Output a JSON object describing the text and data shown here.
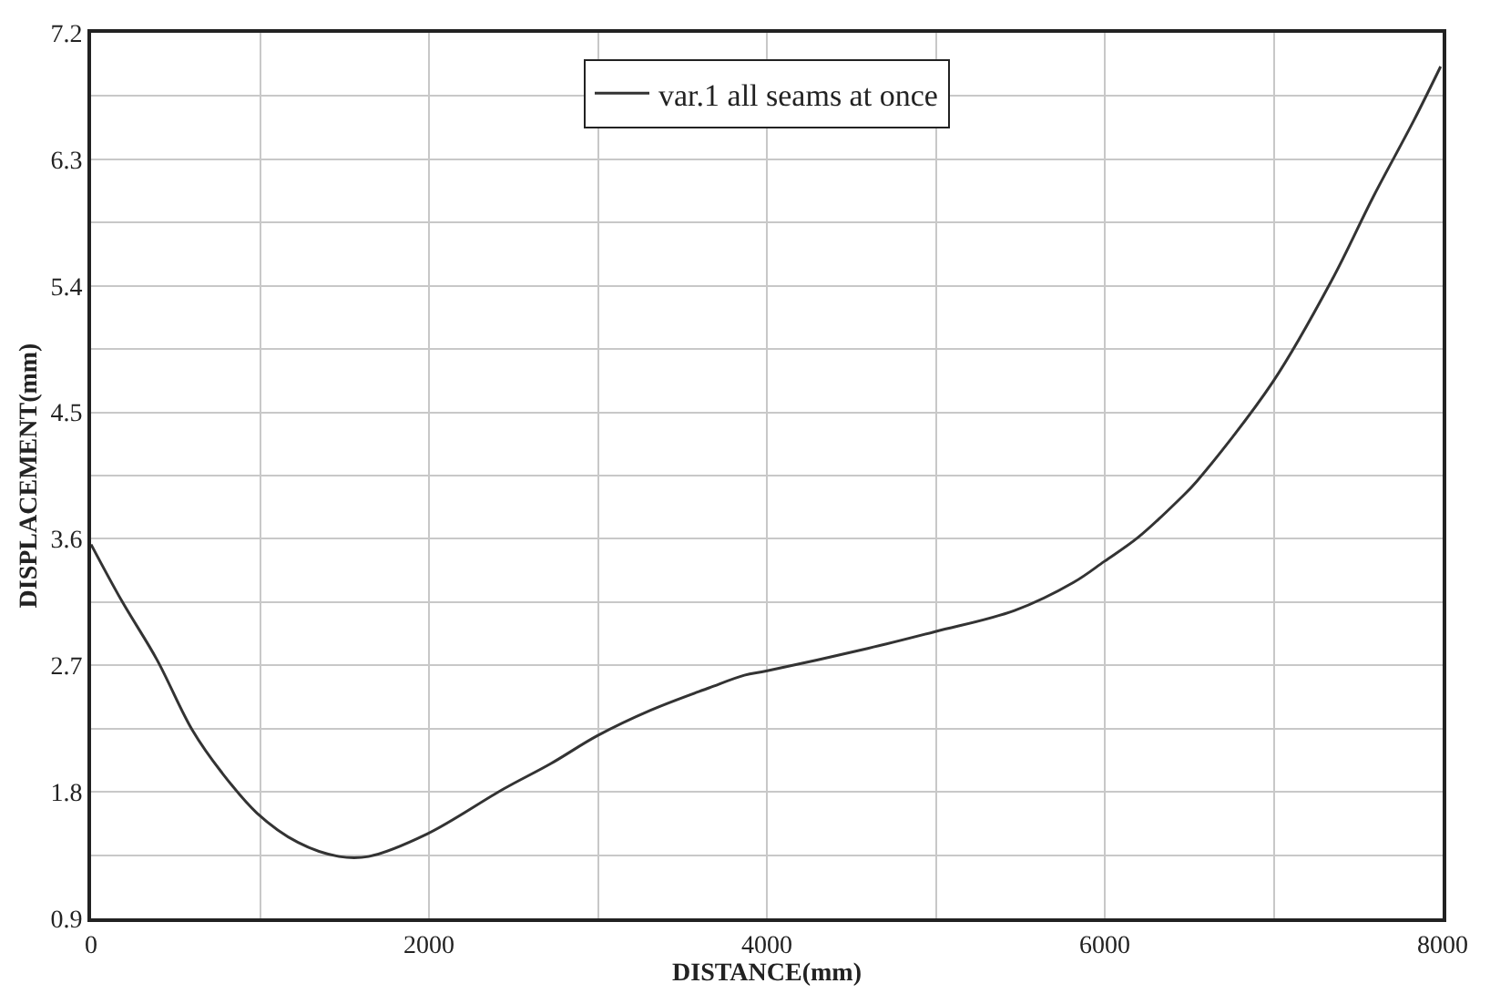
{
  "chart_data": {
    "type": "line",
    "xlabel": "DISTANCE(mm)",
    "ylabel": "DISPLACEMENT(mm)",
    "x": [
      0,
      181,
      390,
      599,
      772,
      981,
      1225,
      1468,
      1642,
      1989,
      2441,
      2720,
      2998,
      3311,
      3658,
      3867,
      3996,
      4597,
      4997,
      5466,
      5815,
      5998,
      6197,
      6441,
      6545,
      6997,
      7344,
      7588,
      7831,
      7988
    ],
    "series": [
      {
        "name": "var.1 all seams at once",
        "color": "#333333",
        "values": [
          3.56,
          3.16,
          2.74,
          2.24,
          1.94,
          1.65,
          1.44,
          1.34,
          1.34,
          1.5,
          1.82,
          2.0,
          2.2,
          2.38,
          2.54,
          2.63,
          2.66,
          2.82,
          2.94,
          3.09,
          3.29,
          3.44,
          3.61,
          3.88,
          4.01,
          4.72,
          5.44,
          6.03,
          6.58,
          6.96
        ]
      }
    ],
    "xlim": [
      0,
      8000
    ],
    "ylim": [
      0.9,
      7.2
    ],
    "xticks": [
      0,
      {
        "value": 1000,
        "label": null
      },
      2000,
      {
        "value": 3000,
        "label": null
      },
      4000,
      {
        "value": 5000,
        "label": null
      },
      6000,
      {
        "value": 7000,
        "label": null
      },
      8000
    ],
    "yticks": [
      0.9,
      {
        "value": 1.35,
        "label": null
      },
      1.8,
      {
        "value": 2.25,
        "label": null
      },
      2.7,
      {
        "value": 3.15,
        "label": null
      },
      3.6,
      {
        "value": 4.05,
        "label": null
      },
      4.5,
      {
        "value": 4.95,
        "label": null
      },
      5.4,
      {
        "value": 5.85,
        "label": null
      },
      6.3,
      {
        "value": 6.75,
        "label": null
      },
      7.2
    ],
    "grid": true,
    "legend": "top",
    "marker": "none",
    "line_style": "solid"
  }
}
